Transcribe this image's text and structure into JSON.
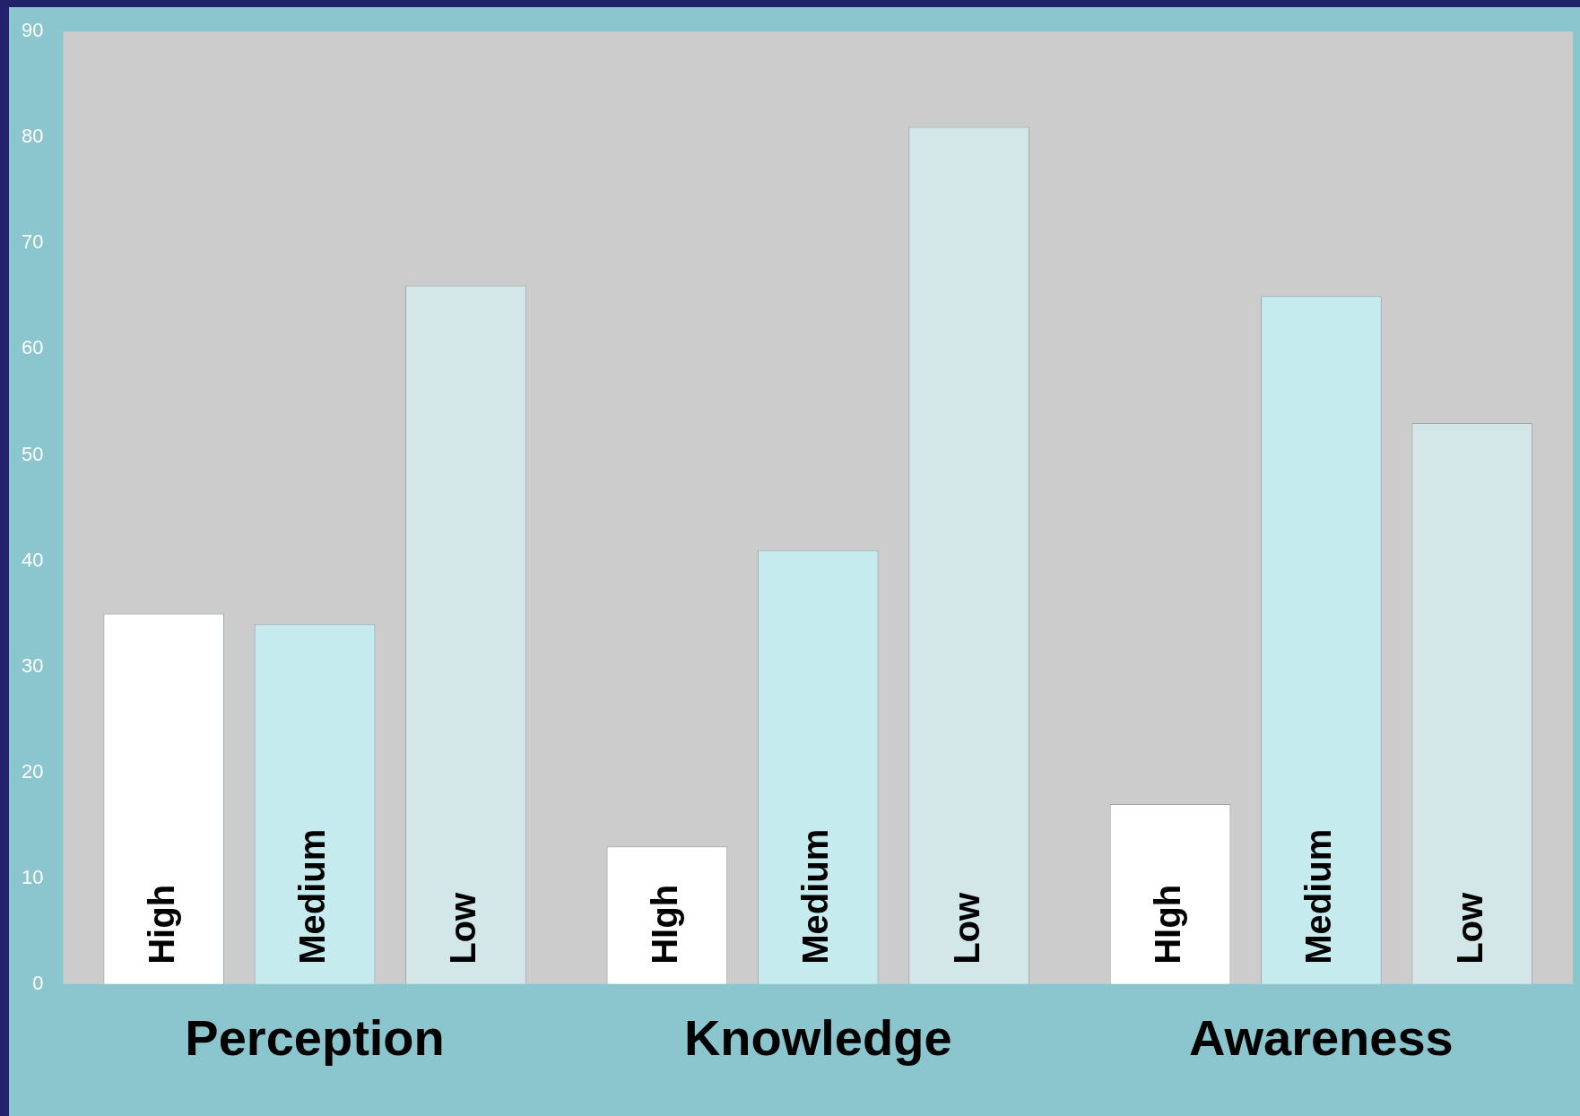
{
  "chart_data": {
    "type": "bar",
    "categories": [
      "Perception",
      "Knowledge",
      "Awareness"
    ],
    "series": [
      {
        "color": "#ffffff",
        "values": [
          35,
          13,
          17
        ],
        "value_labels": [
          "High",
          "HIgh",
          "HIgh"
        ]
      },
      {
        "color": "#c6ebee",
        "values": [
          34,
          41,
          65
        ],
        "value_labels": [
          "Medium",
          "Medium",
          "Medium"
        ]
      },
      {
        "color": "#d3e6e8",
        "values": [
          66,
          81,
          53
        ],
        "value_labels": [
          "Low",
          "Low",
          "Low"
        ]
      }
    ],
    "ylim": [
      0,
      90
    ],
    "yticks": [
      0,
      10,
      20,
      30,
      40,
      50,
      60,
      70,
      80,
      90
    ]
  }
}
